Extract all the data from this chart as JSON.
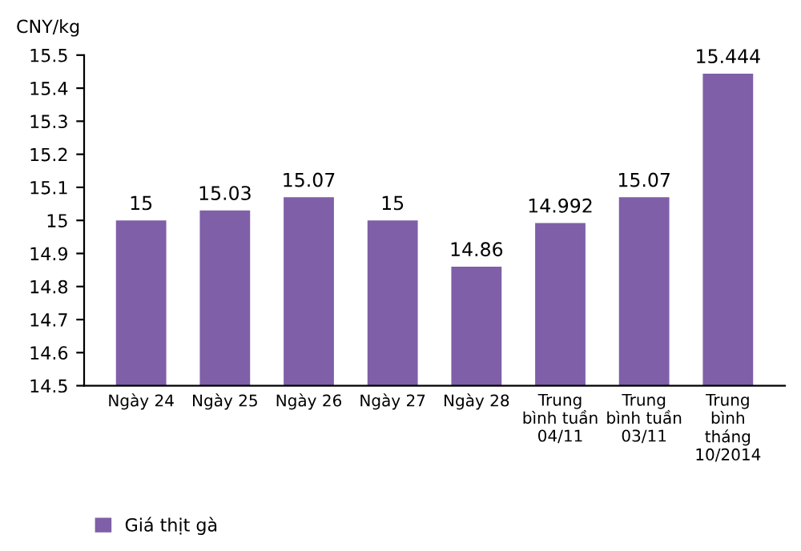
{
  "chart_data": {
    "type": "bar",
    "ylabel": "CNY/kg",
    "categories": [
      "Ngày 24",
      "Ngày 25",
      "Ngày 26",
      "Ngày 27",
      "Ngày 28",
      "Trung\nbình tuần\n04/11",
      "Trung\nbình tuần\n03/11",
      "Trung\nbình\ntháng\n10/2014"
    ],
    "series": [
      {
        "name": "Giá thịt gà",
        "color": "#7e5fa8",
        "values": [
          15,
          15.03,
          15.07,
          15,
          14.86,
          14.992,
          15.07,
          15.444
        ]
      }
    ],
    "ylim": [
      14.5,
      15.5
    ],
    "yticks": [
      14.5,
      14.6,
      14.7,
      14.8,
      14.9,
      15,
      15.1,
      15.2,
      15.3,
      15.4,
      15.5
    ],
    "data_labels": true,
    "legend": "bottom",
    "grid": false
  }
}
